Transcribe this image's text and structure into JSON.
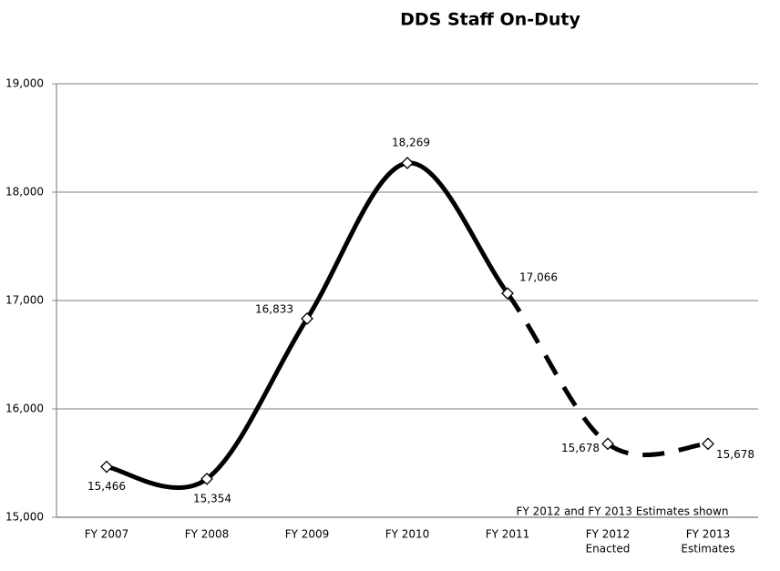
{
  "chart_data": {
    "type": "line",
    "title": "DDS Staff On-Duty",
    "categories": [
      [
        "FY 2007"
      ],
      [
        "FY 2008"
      ],
      [
        "FY 2009"
      ],
      [
        "FY 2010"
      ],
      [
        "FY 2011"
      ],
      [
        "FY 2012",
        "Enacted"
      ],
      [
        "FY 2013",
        "Estimates"
      ]
    ],
    "values": [
      15466,
      15354,
      16833,
      18269,
      17066,
      15678,
      15678
    ],
    "value_labels": [
      "15,466",
      "15,354",
      "16,833",
      "18,269",
      "17,066",
      "15,678",
      "15,678"
    ],
    "dashed_from_index": 4,
    "color": "#000000",
    "ylim": [
      15000,
      19000
    ],
    "yticks": [
      {
        "value": 15000,
        "label": "15,000"
      },
      {
        "value": 16000,
        "label": "16,000"
      },
      {
        "value": 17000,
        "label": "17,000"
      },
      {
        "value": 18000,
        "label": "18,000"
      },
      {
        "value": 19000,
        "label": "19,000"
      }
    ],
    "grid": true,
    "annotation": "FY 2012 and FY 2013 Estimates shown"
  }
}
